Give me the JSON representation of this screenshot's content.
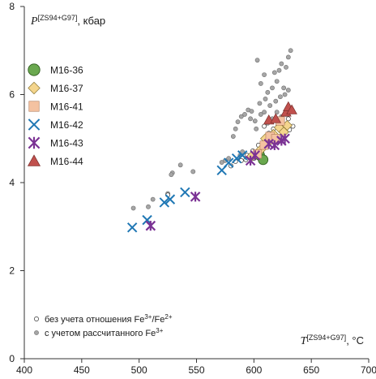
{
  "chart_data": {
    "type": "scatter",
    "xlim": [
      400,
      700
    ],
    "ylim": [
      0,
      8
    ],
    "x_ticks": [
      400,
      450,
      500,
      550,
      600,
      650,
      700
    ],
    "y_ticks": [
      0,
      2,
      4,
      6,
      8
    ],
    "x_tick_labels": [
      "400",
      "450",
      "500",
      "550",
      "600",
      "650",
      "700"
    ],
    "y_tick_labels": [
      "0",
      "2",
      "4",
      "6",
      "8"
    ],
    "ylabel": {
      "symbol": "P",
      "superscript": "[ZS94+G97]",
      "unit": ", кбар"
    },
    "xlabel": {
      "symbol": "T",
      "superscript": "[ZS94+G97]",
      "unit": ", °C"
    },
    "grid": false,
    "legend_placement": "left",
    "series": [
      {
        "name": "M16-36",
        "marker": "circle",
        "color": "#6aa84f",
        "points": [
          [
            605,
            4.62
          ],
          [
            608,
            4.52
          ]
        ]
      },
      {
        "name": "M16-37",
        "marker": "diamond",
        "color": "#f4d58d",
        "points": [
          [
            598,
            4.6
          ],
          [
            606,
            4.75
          ],
          [
            612,
            4.9
          ],
          [
            617,
            5.1
          ],
          [
            622,
            5.25
          ],
          [
            626,
            5.15
          ],
          [
            629,
            5.3
          ],
          [
            610,
            5.0
          ]
        ]
      },
      {
        "name": "M16-41",
        "marker": "square",
        "color": "#f4c2a1",
        "points": [
          [
            603,
            4.65
          ],
          [
            609,
            4.85
          ],
          [
            614,
            5.05
          ],
          [
            619,
            5.0
          ],
          [
            623,
            5.4
          ]
        ]
      },
      {
        "name": "M16-42",
        "marker": "x",
        "color": "#1f77b4",
        "points": [
          [
            494,
            2.98
          ],
          [
            507,
            3.15
          ],
          [
            522,
            3.55
          ],
          [
            527,
            3.62
          ],
          [
            540,
            3.78
          ],
          [
            572,
            4.28
          ],
          [
            578,
            4.45
          ],
          [
            585,
            4.55
          ],
          [
            590,
            4.62
          ]
        ]
      },
      {
        "name": "M16-43",
        "marker": "asterisk",
        "color": "#7b3294",
        "points": [
          [
            510,
            3.02
          ],
          [
            549,
            3.68
          ],
          [
            597,
            4.5
          ],
          [
            601,
            4.62
          ],
          [
            613,
            4.88
          ],
          [
            618,
            4.85
          ],
          [
            624,
            4.95
          ],
          [
            627,
            5.0
          ]
        ]
      },
      {
        "name": "M16-44",
        "marker": "triangle",
        "color": "#c0504d",
        "points": [
          [
            613,
            5.42
          ],
          [
            619,
            5.45
          ],
          [
            628,
            5.6
          ],
          [
            630,
            5.72
          ],
          [
            633,
            5.65
          ]
        ]
      }
    ],
    "background_series": [
      {
        "name": "без учета отношения Fe3+/Fe2+",
        "marker": "open-circle",
        "color": "#ffffff",
        "points": [
          [
            525,
            3.72
          ],
          [
            580,
            4.38
          ],
          [
            584,
            4.48
          ],
          [
            589,
            4.5
          ],
          [
            593,
            4.52
          ],
          [
            597,
            4.6
          ],
          [
            600,
            4.55
          ],
          [
            603,
            4.66
          ],
          [
            607,
            4.72
          ],
          [
            611,
            4.8
          ],
          [
            615,
            4.95
          ],
          [
            619,
            5.0
          ],
          [
            623,
            5.05
          ],
          [
            627,
            5.15
          ],
          [
            631,
            5.2
          ],
          [
            634,
            5.28
          ],
          [
            609,
            5.28
          ],
          [
            613,
            5.12
          ],
          [
            617,
            5.22
          ],
          [
            621,
            5.3
          ],
          [
            625,
            5.35
          ],
          [
            630,
            5.45
          ],
          [
            604,
            4.85
          ],
          [
            599,
            4.72
          ],
          [
            594,
            4.62
          ]
        ]
      },
      {
        "name": "с учетом рассчитанного Fe3+",
        "marker": "filled-circle",
        "color": "#a6a6a6",
        "points": [
          [
            495,
            3.42
          ],
          [
            508,
            3.45
          ],
          [
            512,
            3.62
          ],
          [
            525,
            3.75
          ],
          [
            529,
            4.22
          ],
          [
            528,
            4.18
          ],
          [
            536,
            4.4
          ],
          [
            547,
            4.25
          ],
          [
            572,
            4.46
          ],
          [
            575,
            4.5
          ],
          [
            578,
            4.55
          ],
          [
            588,
            4.62
          ],
          [
            590,
            4.7
          ],
          [
            582,
            5.05
          ],
          [
            584,
            5.22
          ],
          [
            586,
            5.38
          ],
          [
            589,
            5.5
          ],
          [
            592,
            5.55
          ],
          [
            597,
            5.45
          ],
          [
            595,
            5.65
          ],
          [
            598,
            5.62
          ],
          [
            602,
            5.22
          ],
          [
            601,
            5.4
          ],
          [
            606,
            5.55
          ],
          [
            609,
            5.6
          ],
          [
            605,
            5.8
          ],
          [
            610,
            5.9
          ],
          [
            612,
            6.05
          ],
          [
            606,
            6.25
          ],
          [
            609,
            6.45
          ],
          [
            603,
            6.78
          ],
          [
            616,
            6.15
          ],
          [
            620,
            6.3
          ],
          [
            622,
            6.55
          ],
          [
            624,
            6.7
          ],
          [
            618,
            6.5
          ],
          [
            628,
            6.62
          ],
          [
            630,
            6.85
          ],
          [
            632,
            7.0
          ],
          [
            626,
            6.15
          ],
          [
            614,
            5.75
          ],
          [
            619,
            5.85
          ],
          [
            623,
            5.95
          ],
          [
            627,
            6.0
          ],
          [
            630,
            6.1
          ],
          [
            612,
            5.35
          ],
          [
            616,
            5.45
          ],
          [
            620,
            5.6
          ],
          [
            624,
            5.5
          ],
          [
            628,
            5.55
          ]
        ]
      }
    ],
    "legend_entries": [
      "M16-36",
      "M16-37",
      "M16-41",
      "M16-42",
      "M16-43",
      "M16-44"
    ],
    "notes": [
      {
        "marker": "open-circle",
        "text_before": "без учета отношения Fe",
        "sup1": "3+",
        "text_mid": "/Fe",
        "sup2": "2+",
        "text_after": ""
      },
      {
        "marker": "filled-circle",
        "text_before": "с учетом рассчитанного Fe",
        "sup1": "3+",
        "text_mid": "",
        "sup2": "",
        "text_after": ""
      }
    ]
  }
}
